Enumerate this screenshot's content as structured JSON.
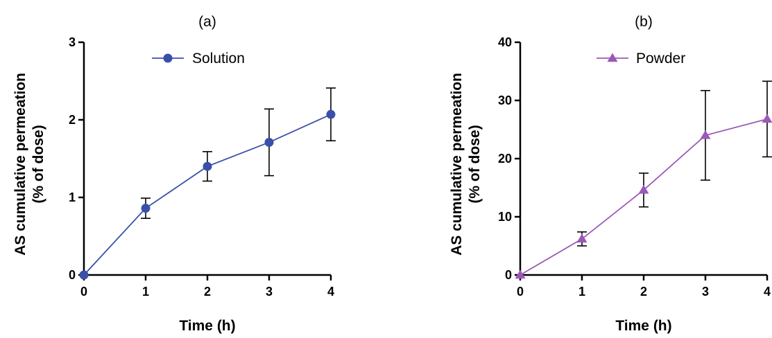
{
  "chart_data": [
    {
      "type": "line",
      "panel_label": "(a)",
      "ylabel_line1": "AS cumulative permeation",
      "ylabel_line2": "(% of dose)",
      "xlabel": "Time (h)",
      "x": [
        0,
        1,
        2,
        3,
        4
      ],
      "xticks": [
        "0",
        "1",
        "2",
        "3",
        "4"
      ],
      "yticks": [
        "0",
        "1",
        "2",
        "3"
      ],
      "xlim": [
        0,
        4
      ],
      "ylim": [
        0,
        3
      ],
      "grid": false,
      "legend_position": "top-center",
      "series": [
        {
          "name": "Solution",
          "marker": "circle",
          "color": "#3a4fa8",
          "values": [
            0,
            0.86,
            1.4,
            1.71,
            2.07
          ],
          "error": [
            0,
            0.13,
            0.19,
            0.43,
            0.34
          ]
        }
      ]
    },
    {
      "type": "line",
      "panel_label": "(b)",
      "ylabel_line1": "AS cumulative permeation",
      "ylabel_line2": "(% of dose)",
      "xlabel": "Time (h)",
      "x": [
        0,
        1,
        2,
        3,
        4
      ],
      "xticks": [
        "0",
        "1",
        "2",
        "3",
        "4"
      ],
      "yticks": [
        "0",
        "10",
        "20",
        "30",
        "40"
      ],
      "xlim": [
        0,
        4
      ],
      "ylim": [
        0,
        40
      ],
      "grid": false,
      "legend_position": "top-center",
      "series": [
        {
          "name": "Powder",
          "marker": "triangle",
          "color": "#9b59b6",
          "values": [
            0,
            6.2,
            14.6,
            24.0,
            26.8
          ],
          "error": [
            0,
            1.2,
            2.9,
            7.7,
            6.5
          ]
        }
      ]
    }
  ]
}
